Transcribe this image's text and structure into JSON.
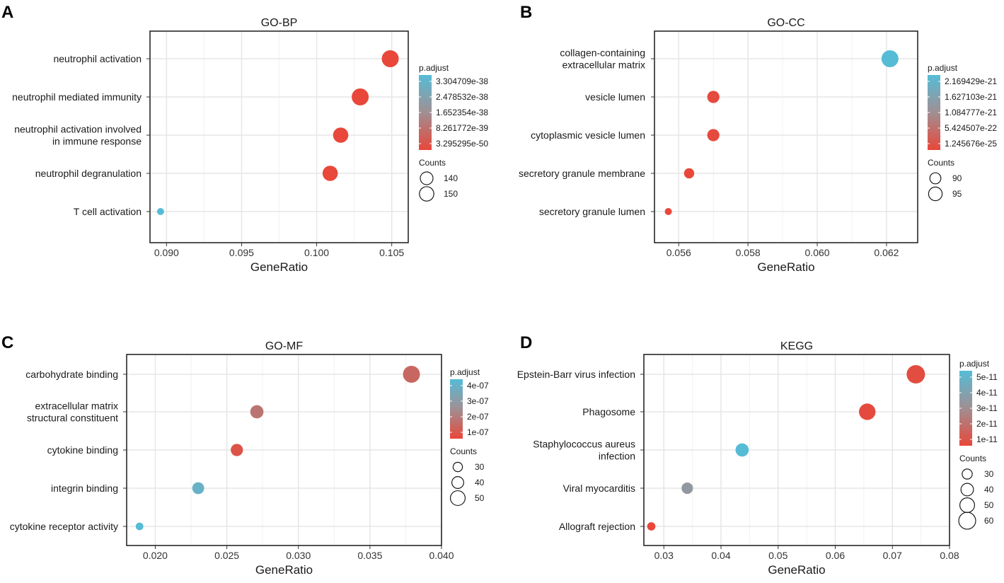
{
  "colors": {
    "low": "#e8473a",
    "mid": "#a08f93",
    "high": "#56bcd6",
    "grid": "#e6e6e6"
  },
  "chart_data": [
    {
      "panel": "A",
      "type": "scatter",
      "title": "GO-BP",
      "xlabel": "GeneRatio",
      "xlim": [
        0.0889,
        0.1061
      ],
      "xticks": [
        0.09,
        0.095,
        0.1,
        0.105
      ],
      "xtick_labels": [
        "0.090",
        "0.095",
        "0.100",
        "0.105"
      ],
      "categories": [
        "neutrophil activation",
        "neutrophil mediated immunity",
        "neutrophil activation involved\nin immune response",
        "neutrophil degranulation",
        "T cell activation"
      ],
      "x": [
        0.1049,
        0.1029,
        0.1016,
        0.1009,
        0.0896
      ],
      "color_frac": [
        0.0,
        0.0,
        0.0,
        0.0,
        1.0
      ],
      "size_rel": [
        1.0,
        1.0,
        0.9,
        0.9,
        0.25
      ],
      "legend_color": {
        "title": "p.adjust",
        "labels": [
          "3.304709e-38",
          "2.478532e-38",
          "1.652354e-38",
          "8.261772e-39",
          "3.295295e-50"
        ]
      },
      "legend_size": {
        "title": "Counts",
        "labels": [
          "140",
          "150"
        ],
        "rel": [
          0.75,
          0.85
        ]
      }
    },
    {
      "panel": "B",
      "type": "scatter",
      "title": "GO-CC",
      "xlabel": "GeneRatio",
      "xlim": [
        0.0553,
        0.0629
      ],
      "xticks": [
        0.056,
        0.058,
        0.06,
        0.062
      ],
      "xtick_labels": [
        "0.056",
        "0.058",
        "0.060",
        "0.062"
      ],
      "categories": [
        "collagen-containing\nextracellular matrix",
        "vesicle lumen",
        "cytoplasmic vesicle lumen",
        "secretory granule membrane",
        "secretory granule lumen"
      ],
      "x": [
        0.0621,
        0.057,
        0.057,
        0.0563,
        0.0557
      ],
      "color_frac": [
        1.0,
        0.02,
        0.02,
        0.0,
        0.0
      ],
      "size_rel": [
        1.0,
        0.72,
        0.72,
        0.6,
        0.4
      ],
      "legend_color": {
        "title": "p.adjust",
        "labels": [
          "2.169429e-21",
          "1.627103e-21",
          "1.084777e-21",
          "5.424507e-22",
          "1.245676e-25"
        ]
      },
      "legend_size": {
        "title": "Counts",
        "labels": [
          "90",
          "95"
        ],
        "rel": [
          0.65,
          0.8
        ]
      }
    },
    {
      "panel": "C",
      "type": "scatter",
      "title": "GO-MF",
      "xlabel": "GeneRatio",
      "xlim": [
        0.018,
        0.04
      ],
      "xticks": [
        0.02,
        0.025,
        0.03,
        0.035,
        0.04
      ],
      "xtick_labels": [
        "0.020",
        "0.025",
        "0.030",
        "0.035",
        "0.040"
      ],
      "categories": [
        "carbohydrate binding",
        "extracellular matrix\nstructural constituent",
        "cytokine binding",
        "integrin binding",
        "cytokine receptor activity"
      ],
      "x": [
        0.0379,
        0.0271,
        0.0257,
        0.023,
        0.0189
      ],
      "color_frac": [
        0.22,
        0.32,
        0.08,
        0.88,
        1.0
      ],
      "size_rel": [
        1.0,
        0.78,
        0.72,
        0.7,
        0.45
      ],
      "legend_color": {
        "title": "p.adjust",
        "labels": [
          "4e-07",
          "3e-07",
          "2e-07",
          "1e-07"
        ]
      },
      "legend_size": {
        "title": "Counts",
        "labels": [
          "30",
          "40",
          "50"
        ],
        "rel": [
          0.55,
          0.7,
          0.87
        ]
      }
    },
    {
      "panel": "D",
      "type": "scatter",
      "title": "KEGG",
      "xlabel": "GeneRatio",
      "xlim": [
        0.0265,
        0.08
      ],
      "xticks": [
        0.03,
        0.04,
        0.05,
        0.06,
        0.07,
        0.08
      ],
      "xtick_labels": [
        "0.03",
        "0.04",
        "0.05",
        "0.06",
        "0.07",
        "0.08"
      ],
      "categories": [
        "Epstein-Barr virus infection",
        "Phagosome",
        "Staphylococcus aureus\ninfection",
        "Viral myocarditis",
        "Allograft rejection"
      ],
      "x": [
        0.0741,
        0.0656,
        0.0437,
        0.0341,
        0.0278
      ],
      "color_frac": [
        0.04,
        0.02,
        1.0,
        0.6,
        0.0
      ],
      "size_rel": [
        1.0,
        0.9,
        0.72,
        0.62,
        0.45
      ],
      "legend_color": {
        "title": "p.adjust",
        "labels": [
          "5e-11",
          "4e-11",
          "3e-11",
          "2e-11",
          "1e-11"
        ]
      },
      "legend_size": {
        "title": "Counts",
        "labels": [
          "30",
          "40",
          "50",
          "60"
        ],
        "rel": [
          0.55,
          0.68,
          0.8,
          0.92
        ]
      }
    }
  ]
}
